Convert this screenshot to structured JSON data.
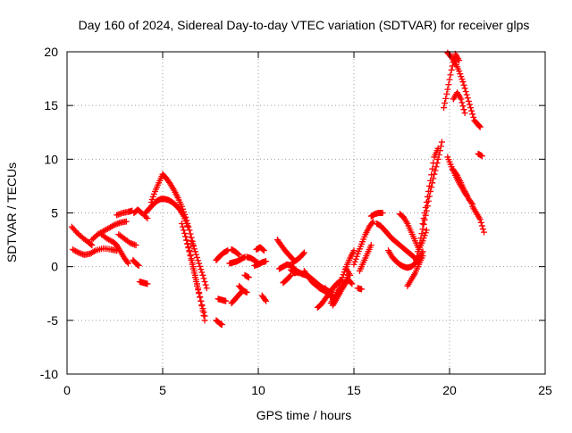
{
  "chart_data": {
    "type": "scatter",
    "title": "Day 160 of 2024, Sidereal Day-to-day VTEC variation (SDTVAR) for receiver glps",
    "xlabel": "GPS time / hours",
    "ylabel": "SDTVAR / TECUs",
    "xlim": [
      0,
      25
    ],
    "ylim": [
      -10,
      20
    ],
    "xticks": [
      0,
      5,
      10,
      15,
      20,
      25
    ],
    "yticks": [
      -10,
      -5,
      0,
      5,
      10,
      15,
      20
    ],
    "grid": true,
    "marker": "+",
    "series": [
      {
        "name": "SDTVAR",
        "color": "#ff0000",
        "tracks": [
          {
            "x": [
              0.25,
              0.5,
              0.8,
              1.1,
              1.3
            ],
            "y": [
              3.7,
              3.2,
              2.7,
              2.3,
              2.0
            ]
          },
          {
            "x": [
              0.3,
              0.6,
              0.9,
              1.2,
              1.5,
              1.9,
              2.3,
              2.6
            ],
            "y": [
              1.6,
              1.3,
              1.1,
              1.2,
              1.5,
              1.7,
              1.6,
              1.5
            ]
          },
          {
            "x": [
              1.3,
              1.6,
              1.9,
              2.2,
              2.5,
              2.8,
              3.1
            ],
            "y": [
              2.5,
              3.0,
              3.3,
              3.6,
              3.9,
              4.1,
              4.2
            ]
          },
          {
            "x": [
              2.6,
              2.9,
              3.2,
              3.4
            ],
            "y": [
              4.8,
              5.0,
              5.1,
              5.2
            ]
          },
          {
            "x": [
              1.8,
              2.1,
              2.4,
              2.6,
              2.8,
              3.0,
              3.2
            ],
            "y": [
              3.0,
              2.6,
              2.3,
              2.0,
              1.4,
              0.8,
              0.3
            ]
          },
          {
            "x": [
              2.7,
              3.0,
              3.3,
              3.6
            ],
            "y": [
              3.0,
              2.6,
              2.2,
              2.0
            ]
          },
          {
            "x": [
              3.5,
              3.7,
              3.9,
              4.2
            ],
            "y": [
              5.0,
              5.3,
              5.0,
              4.5
            ]
          },
          {
            "x": [
              3.45,
              3.6,
              3.75
            ],
            "y": [
              0.6,
              0.3,
              0.1
            ]
          },
          {
            "x": [
              3.8,
              4.0,
              4.2
            ],
            "y": [
              -1.4,
              -1.5,
              -1.6
            ]
          },
          {
            "x": [
              4.1,
              4.3,
              4.5,
              4.7,
              4.9,
              5.1,
              5.3,
              5.5,
              5.7,
              5.9,
              6.1,
              6.3
            ],
            "y": [
              5.0,
              5.4,
              5.8,
              6.1,
              6.3,
              6.3,
              6.2,
              6.0,
              5.7,
              5.3,
              4.7,
              3.8
            ]
          },
          {
            "x": [
              4.4,
              4.6,
              4.8,
              5.0,
              5.2,
              5.4,
              5.6,
              5.8,
              6.0,
              6.2,
              6.4,
              6.6
            ],
            "y": [
              6.0,
              7.0,
              7.8,
              8.6,
              8.2,
              7.7,
              7.1,
              6.4,
              5.6,
              4.6,
              3.4,
              2.0
            ]
          },
          {
            "x": [
              6.0,
              6.2,
              6.4,
              6.6,
              6.8,
              7.0,
              7.2
            ],
            "y": [
              4.0,
              2.8,
              1.4,
              -0.2,
              -1.8,
              -3.2,
              -4.6
            ]
          },
          {
            "x": [
              6.2,
              6.4,
              6.6,
              6.8,
              7.0,
              7.2
            ],
            "y": [
              2.8,
              1.5,
              0.0,
              -1.6,
              -3.2,
              -5.0
            ]
          },
          {
            "x": [
              6.5,
              6.7,
              6.9,
              7.1,
              7.3
            ],
            "y": [
              2.4,
              1.4,
              0.3,
              -0.8,
              -2.0
            ]
          },
          {
            "x": [
              7.8,
              8.0,
              8.1
            ],
            "y": [
              -5.0,
              -5.3,
              -5.4
            ]
          },
          {
            "x": [
              7.9,
              8.1,
              8.3
            ],
            "y": [
              -3.0,
              -3.1,
              -3.2
            ]
          },
          {
            "x": [
              7.8,
              8.0,
              8.2,
              8.4
            ],
            "y": [
              0.6,
              1.0,
              1.3,
              1.5
            ]
          },
          {
            "x": [
              8.6,
              8.8,
              9.0
            ],
            "y": [
              1.6,
              1.4,
              1.1
            ]
          },
          {
            "x": [
              8.5,
              8.7,
              8.9,
              9.1,
              9.3
            ],
            "y": [
              0.3,
              0.4,
              0.5,
              0.7,
              0.9
            ]
          },
          {
            "x": [
              8.6,
              8.8,
              9.0,
              9.2
            ],
            "y": [
              -3.4,
              -3.0,
              -2.6,
              -2.2
            ]
          },
          {
            "x": [
              9.0,
              9.2,
              9.4
            ],
            "y": [
              -1.8,
              -2.2,
              -2.4
            ]
          },
          {
            "x": [
              9.3,
              9.5
            ],
            "y": [
              -0.8,
              -1.0
            ]
          },
          {
            "x": [
              9.4,
              9.6,
              9.8,
              10.0
            ],
            "y": [
              0.9,
              0.8,
              0.6,
              0.3
            ]
          },
          {
            "x": [
              9.8,
              10.0,
              10.2,
              10.4
            ],
            "y": [
              0.1,
              0.2,
              0.4,
              0.5
            ]
          },
          {
            "x": [
              9.9,
              10.1,
              10.3
            ],
            "y": [
              1.6,
              1.8,
              1.5
            ]
          },
          {
            "x": [
              10.2,
              10.4
            ],
            "y": [
              -2.7,
              -3.2
            ]
          },
          {
            "x": [
              11.0,
              11.2,
              11.4,
              11.6,
              11.8
            ],
            "y": [
              2.5,
              2.0,
              1.5,
              1.1,
              0.7
            ]
          },
          {
            "x": [
              11.1,
              11.3,
              11.5,
              11.7,
              11.9,
              12.1
            ],
            "y": [
              -0.2,
              0.0,
              0.2,
              0.1,
              -0.2,
              -0.6
            ]
          },
          {
            "x": [
              11.3,
              11.5,
              11.7
            ],
            "y": [
              -1.5,
              -1.2,
              -0.8
            ]
          },
          {
            "x": [
              11.8,
              12.0,
              12.2,
              12.4
            ],
            "y": [
              0.4,
              0.6,
              0.9,
              1.3
            ]
          },
          {
            "x": [
              11.7,
              11.9,
              12.1,
              12.3,
              12.5,
              12.7,
              12.9,
              13.1,
              13.3,
              13.5,
              13.7,
              13.9
            ],
            "y": [
              -0.3,
              -0.6,
              -0.5,
              -0.7,
              -0.8,
              -1.0,
              -1.3,
              -1.6,
              -1.9,
              -2.1,
              -2.3,
              -2.4
            ]
          },
          {
            "x": [
              12.4,
              12.6,
              12.8,
              13.0,
              13.2,
              13.4,
              13.6
            ],
            "y": [
              -0.4,
              -0.9,
              -1.4,
              -1.7,
              -2.0,
              -2.2,
              -2.4
            ]
          },
          {
            "x": [
              13.1,
              13.3,
              13.5,
              13.7,
              13.9,
              14.1,
              14.3
            ],
            "y": [
              -3.8,
              -3.5,
              -3.0,
              -2.5,
              -2.0,
              -1.6,
              -1.3
            ]
          },
          {
            "x": [
              13.5,
              13.7,
              13.9,
              14.1,
              14.3,
              14.5,
              14.7,
              14.9
            ],
            "y": [
              -2.0,
              -2.5,
              -3.0,
              -2.8,
              -2.3,
              -1.7,
              -1.2,
              -1.6
            ]
          },
          {
            "x": [
              13.8,
              14.0,
              14.2,
              14.4,
              14.6,
              14.8,
              15.0
            ],
            "y": [
              -3.4,
              -2.8,
              -2.0,
              -1.0,
              0.0,
              0.8,
              1.5
            ]
          },
          {
            "x": [
              13.9,
              14.1,
              14.3,
              14.5,
              14.7
            ],
            "y": [
              -3.6,
              -3.0,
              -2.3,
              -1.6,
              -0.8
            ]
          },
          {
            "x": [
              15.2,
              15.4
            ],
            "y": [
              -2.0,
              -2.1
            ]
          },
          {
            "x": [
              14.6,
              14.8
            ],
            "y": [
              -0.2,
              -0.8
            ]
          },
          {
            "x": [
              15.0,
              15.2,
              15.4,
              15.6,
              15.8,
              16.0
            ],
            "y": [
              0.2,
              1.2,
              2.1,
              3.0,
              3.7,
              4.2
            ]
          },
          {
            "x": [
              15.3,
              15.5,
              15.7,
              15.9
            ],
            "y": [
              -0.4,
              0.4,
              1.2,
              2.0
            ]
          },
          {
            "x": [
              15.9,
              16.1,
              16.3,
              16.5
            ],
            "y": [
              4.7,
              4.9,
              5.0,
              5.0
            ]
          },
          {
            "x": [
              16.2,
              16.4,
              16.6,
              16.8,
              17.0,
              17.2,
              17.4,
              17.6,
              17.8,
              18.0,
              18.2,
              18.4
            ],
            "y": [
              4.0,
              3.8,
              3.4,
              3.0,
              2.6,
              2.3,
              2.0,
              1.7,
              1.4,
              1.1,
              0.8,
              0.6
            ]
          },
          {
            "x": [
              16.8,
              17.0,
              17.2,
              17.4,
              17.6,
              17.8,
              18.0,
              18.2,
              18.4,
              18.6
            ],
            "y": [
              1.5,
              0.9,
              0.5,
              0.2,
              0.0,
              -0.1,
              0.0,
              0.3,
              0.8,
              1.4
            ]
          },
          {
            "x": [
              17.4,
              17.6,
              17.8,
              18.0,
              18.2,
              18.4,
              18.6,
              18.8
            ],
            "y": [
              4.9,
              4.6,
              4.0,
              3.2,
              2.4,
              1.6,
              2.4,
              3.4
            ]
          },
          {
            "x": [
              17.8,
              18.0,
              18.2,
              18.4,
              18.6
            ],
            "y": [
              -1.8,
              -1.2,
              -0.6,
              0.2,
              1.0
            ]
          },
          {
            "x": [
              18.2,
              18.4,
              18.6,
              18.8,
              19.0,
              19.2,
              19.4,
              19.6
            ],
            "y": [
              0.2,
              1.8,
              3.5,
              5.2,
              7.0,
              8.6,
              10.0,
              11.6
            ]
          },
          {
            "x": [
              18.6,
              18.8,
              19.0,
              19.2,
              19.4
            ],
            "y": [
              4.0,
              6.0,
              8.0,
              10.2,
              11.0
            ]
          },
          {
            "x": [
              19.7,
              19.9,
              20.1,
              20.3,
              20.5
            ],
            "y": [
              14.8,
              16.5,
              18.3,
              19.8,
              19.2
            ]
          },
          {
            "x": [
              19.9,
              20.1,
              20.3,
              20.5,
              20.7,
              20.9,
              21.1,
              21.3,
              21.5,
              21.6
            ],
            "y": [
              19.9,
              19.5,
              19.0,
              18.2,
              17.2,
              16.0,
              14.8,
              13.6,
              13.2,
              13.0
            ]
          },
          {
            "x": [
              20.2,
              20.4,
              20.6,
              20.8
            ],
            "y": [
              15.6,
              16.2,
              15.6,
              14.3
            ]
          },
          {
            "x": [
              19.9,
              20.1,
              20.3,
              20.5,
              20.7,
              20.9
            ],
            "y": [
              10.2,
              9.3,
              8.5,
              7.8,
              7.2,
              6.6
            ]
          },
          {
            "x": [
              20.2,
              20.4,
              20.6,
              20.8,
              21.0,
              21.2
            ],
            "y": [
              9.0,
              8.5,
              7.8,
              7.0,
              6.3,
              5.8
            ]
          },
          {
            "x": [
              21.2,
              21.4,
              21.6,
              21.8
            ],
            "y": [
              5.6,
              5.0,
              4.4,
              3.2
            ]
          },
          {
            "x": [
              21.5,
              21.7
            ],
            "y": [
              10.5,
              10.3
            ]
          }
        ]
      }
    ]
  }
}
